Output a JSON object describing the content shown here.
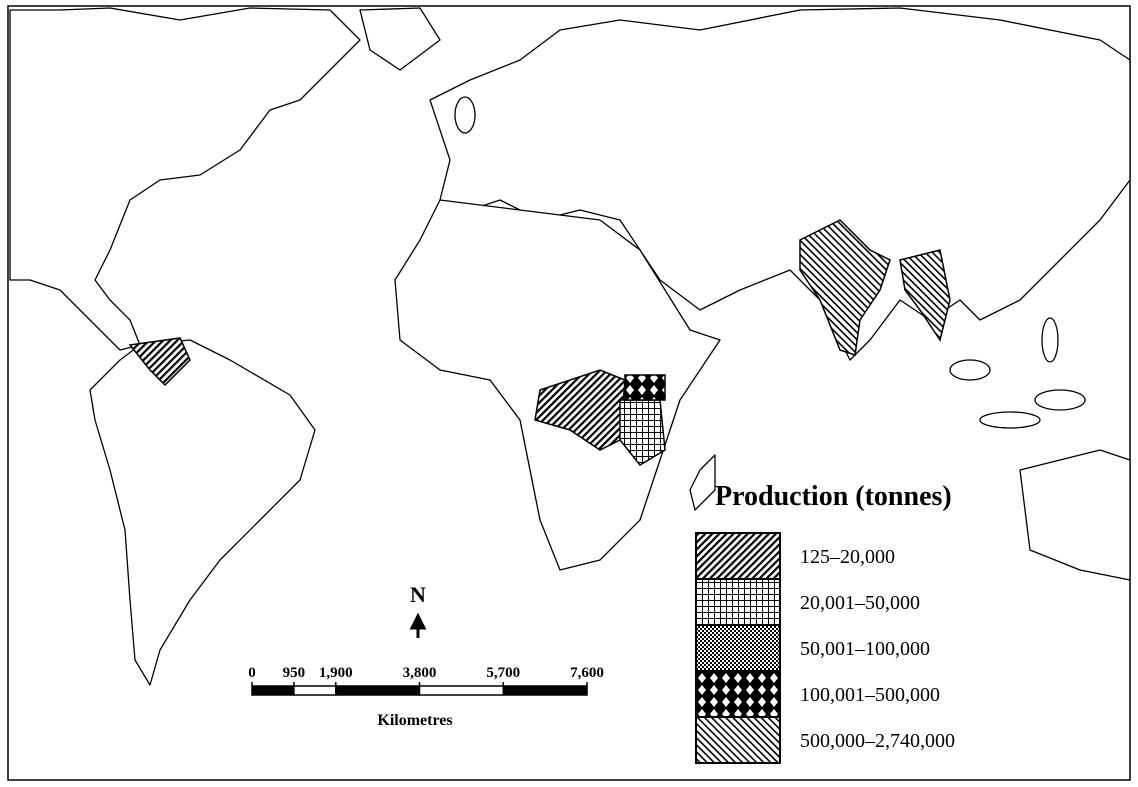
{
  "legend": {
    "title": "Production (tonnes)",
    "items": [
      "125–20,000",
      "20,001–50,000",
      "50,001–100,000",
      "100,001–500,000",
      "500,000–2,740,000"
    ]
  },
  "north_label": "N",
  "scale_bar": {
    "ticks": [
      0,
      950,
      {
        "value": 1900,
        "label": "1,900"
      },
      {
        "value": 3800,
        "label": "3,800"
      },
      {
        "value": 5700,
        "label": "5,700"
      },
      {
        "value": 7600,
        "label": "7,600"
      }
    ],
    "unit_label": "Kilometres"
  }
}
